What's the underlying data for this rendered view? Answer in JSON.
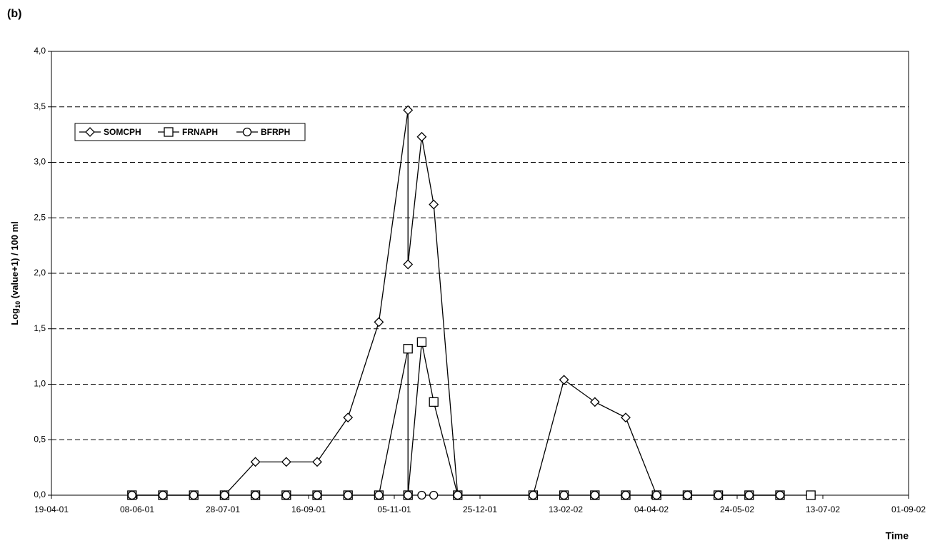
{
  "chart_data": {
    "type": "line",
    "panel_label": "(b)",
    "x_label": "Time",
    "y_label_parts": [
      "Log",
      "10",
      " (value+1) / 100 ml"
    ],
    "xlim": [
      "2001-04-19",
      "2002-09-01"
    ],
    "xticks": [
      {
        "value": "2001-04-19",
        "label": "19-04-01"
      },
      {
        "value": "2001-06-08",
        "label": "08-06-01"
      },
      {
        "value": "2001-07-28",
        "label": "28-07-01"
      },
      {
        "value": "2001-09-16",
        "label": "16-09-01"
      },
      {
        "value": "2001-11-05",
        "label": "05-11-01"
      },
      {
        "value": "2001-12-25",
        "label": "25-12-01"
      },
      {
        "value": "2002-02-13",
        "label": "13-02-02"
      },
      {
        "value": "2002-04-04",
        "label": "04-04-02"
      },
      {
        "value": "2002-05-24",
        "label": "24-05-02"
      },
      {
        "value": "2002-07-13",
        "label": "13-07-02"
      },
      {
        "value": "2002-09-01",
        "label": "01-09-02"
      }
    ],
    "ylim": [
      0,
      4
    ],
    "yticks": [
      {
        "value": 0,
        "label": "0,0"
      },
      {
        "value": 0.5,
        "label": "0,5"
      },
      {
        "value": 1,
        "label": "1,0"
      },
      {
        "value": 1.5,
        "label": "1,5"
      },
      {
        "value": 2,
        "label": "2,0"
      },
      {
        "value": 2.5,
        "label": "2,5"
      },
      {
        "value": 3,
        "label": "3,0"
      },
      {
        "value": 3.5,
        "label": "3,5"
      },
      {
        "value": 4,
        "label": "4,0"
      }
    ],
    "grid": true,
    "legend_position": "upper-left",
    "series": [
      {
        "name": "SOMCPH",
        "color": "#000000",
        "marker": "diamond",
        "x": [
          "2001-06-05",
          "2001-06-23",
          "2001-07-11",
          "2001-07-29",
          "2001-08-16",
          "2001-09-03",
          "2001-09-21",
          "2001-10-09",
          "2001-10-27",
          "2001-11-13",
          "2001-11-13",
          "2001-11-21",
          "2001-11-28",
          "2001-12-12",
          "2002-01-25",
          "2002-02-12",
          "2002-03-02",
          "2002-03-20",
          "2002-04-07",
          "2002-04-25",
          "2002-05-13",
          "2002-05-31",
          "2002-06-18"
        ],
        "values": [
          0,
          0,
          0,
          0,
          0.3,
          0.3,
          0.3,
          0.7,
          1.56,
          3.47,
          2.08,
          3.23,
          2.62,
          0,
          0,
          1.04,
          0.84,
          0.7,
          0,
          0,
          0,
          0,
          0
        ]
      },
      {
        "name": "FRNAPH",
        "color": "#000000",
        "marker": "square",
        "x": [
          "2001-06-05",
          "2001-06-23",
          "2001-07-11",
          "2001-07-29",
          "2001-08-16",
          "2001-09-03",
          "2001-09-21",
          "2001-10-09",
          "2001-10-27",
          "2001-11-13",
          "2001-11-13",
          "2001-11-21",
          "2001-11-28",
          "2001-12-12",
          "2002-01-25",
          "2002-02-12",
          "2002-03-02",
          "2002-03-20",
          "2002-04-07",
          "2002-04-25",
          "2002-05-13",
          "2002-05-31",
          "2002-06-18",
          "2002-07-06"
        ],
        "values": [
          0,
          0,
          0,
          0,
          0,
          0,
          0,
          0,
          0,
          1.32,
          0,
          1.38,
          0.84,
          0,
          0,
          0,
          0,
          0,
          0,
          0,
          0,
          0,
          0,
          0
        ]
      },
      {
        "name": "BFRPH",
        "color": "#000000",
        "marker": "circle",
        "x": [
          "2001-06-05",
          "2001-06-23",
          "2001-07-11",
          "2001-07-29",
          "2001-08-16",
          "2001-09-03",
          "2001-09-21",
          "2001-10-09",
          "2001-10-27",
          "2001-11-13",
          "2001-11-21",
          "2001-11-28",
          "2001-12-12",
          "2002-01-25",
          "2002-02-12",
          "2002-03-02",
          "2002-03-20",
          "2002-04-07",
          "2002-04-25",
          "2002-05-13",
          "2002-05-31",
          "2002-06-18"
        ],
        "values": [
          0,
          0,
          0,
          0,
          0,
          0,
          0,
          0,
          0,
          0,
          0,
          0,
          0,
          0,
          0,
          0,
          0,
          0,
          0,
          0,
          0,
          0
        ]
      }
    ]
  }
}
